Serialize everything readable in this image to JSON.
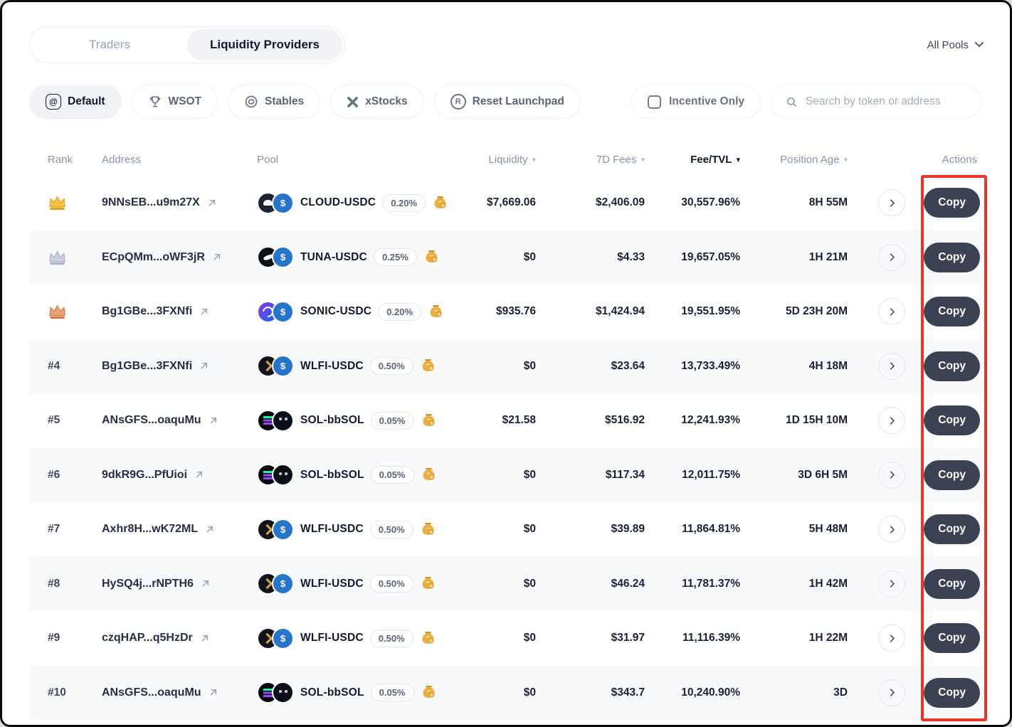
{
  "tabs": {
    "traders": "Traders",
    "liquidity_providers": "Liquidity Providers"
  },
  "pools_dropdown": {
    "label": "All Pools"
  },
  "filters": {
    "default": "Default",
    "wsot": "WSOT",
    "stables": "Stables",
    "xstocks": "xStocks",
    "reset_launchpad": "Reset Launchpad",
    "incentive_only": "Incentive Only"
  },
  "search": {
    "placeholder": "Search by token or address"
  },
  "icons": {
    "default_glyph": "@",
    "reset_glyph": "R",
    "usdc_symbol": "$",
    "sort_arrow": "▾",
    "chevron_right": "›"
  },
  "buttons": {
    "copy_label": "Copy"
  },
  "colors": {
    "accent_red": "#e8362a",
    "copy_button_bg": "#3b4254",
    "usdc_blue": "#2775ca",
    "money_bag_gold": "#ecaf3f",
    "active_pill_bg": "#f1f2f6"
  },
  "table": {
    "headers": {
      "rank": "Rank",
      "address": "Address",
      "pool": "Pool",
      "liquidity": "Liquidity",
      "fees_7d": "7D Fees",
      "fee_tvl": "Fee/TVL",
      "position_age": "Position Age",
      "actions": "Actions"
    },
    "sorted_by": "Fee/TVL",
    "rows": [
      {
        "rank_medal": "gold",
        "rank": "",
        "address": "9NNsEB...u9m27X",
        "pool": "CLOUD-USDC",
        "fee_tier": "0.20%",
        "liquidity": "$7,669.06",
        "fees_7d": "$2,406.09",
        "fee_tvl": "30,557.96%",
        "position_age": "8H 55M"
      },
      {
        "rank_medal": "silver",
        "rank": "",
        "address": "ECpQMm...oWF3jR",
        "pool": "TUNA-USDC",
        "fee_tier": "0.25%",
        "liquidity": "$0",
        "fees_7d": "$4.33",
        "fee_tvl": "19,657.05%",
        "position_age": "1H 21M"
      },
      {
        "rank_medal": "bronze",
        "rank": "",
        "address": "Bg1GBe...3FXNfi",
        "pool": "SONIC-USDC",
        "fee_tier": "0.20%",
        "liquidity": "$935.76",
        "fees_7d": "$1,424.94",
        "fee_tvl": "19,551.95%",
        "position_age": "5D 23H 20M"
      },
      {
        "rank_medal": "none",
        "rank": "#4",
        "address": "Bg1GBe...3FXNfi",
        "pool": "WLFI-USDC",
        "fee_tier": "0.50%",
        "liquidity": "$0",
        "fees_7d": "$23.64",
        "fee_tvl": "13,733.49%",
        "position_age": "4H 18M"
      },
      {
        "rank_medal": "none",
        "rank": "#5",
        "address": "ANsGFS...oaquMu",
        "pool": "SOL-bbSOL",
        "fee_tier": "0.05%",
        "liquidity": "$21.58",
        "fees_7d": "$516.92",
        "fee_tvl": "12,241.93%",
        "position_age": "1D 15H 10M"
      },
      {
        "rank_medal": "none",
        "rank": "#6",
        "address": "9dkR9G...PfUioi",
        "pool": "SOL-bbSOL",
        "fee_tier": "0.05%",
        "liquidity": "$0",
        "fees_7d": "$117.34",
        "fee_tvl": "12,011.75%",
        "position_age": "3D 6H 5M"
      },
      {
        "rank_medal": "none",
        "rank": "#7",
        "address": "Axhr8H...wK72ML",
        "pool": "WLFI-USDC",
        "fee_tier": "0.50%",
        "liquidity": "$0",
        "fees_7d": "$39.89",
        "fee_tvl": "11,864.81%",
        "position_age": "5H 48M"
      },
      {
        "rank_medal": "none",
        "rank": "#8",
        "address": "HySQ4j...rNPTH6",
        "pool": "WLFI-USDC",
        "fee_tier": "0.50%",
        "liquidity": "$0",
        "fees_7d": "$46.24",
        "fee_tvl": "11,781.37%",
        "position_age": "1H 42M"
      },
      {
        "rank_medal": "none",
        "rank": "#9",
        "address": "czqHAP...q5HzDr",
        "pool": "WLFI-USDC",
        "fee_tier": "0.50%",
        "liquidity": "$0",
        "fees_7d": "$31.97",
        "fee_tvl": "11,116.39%",
        "position_age": "1H 22M"
      },
      {
        "rank_medal": "none",
        "rank": "#10",
        "address": "ANsGFS...oaquMu",
        "pool": "SOL-bbSOL",
        "fee_tier": "0.05%",
        "liquidity": "$0",
        "fees_7d": "$343.7",
        "fee_tvl": "10,240.90%",
        "position_age": "3D"
      }
    ]
  }
}
